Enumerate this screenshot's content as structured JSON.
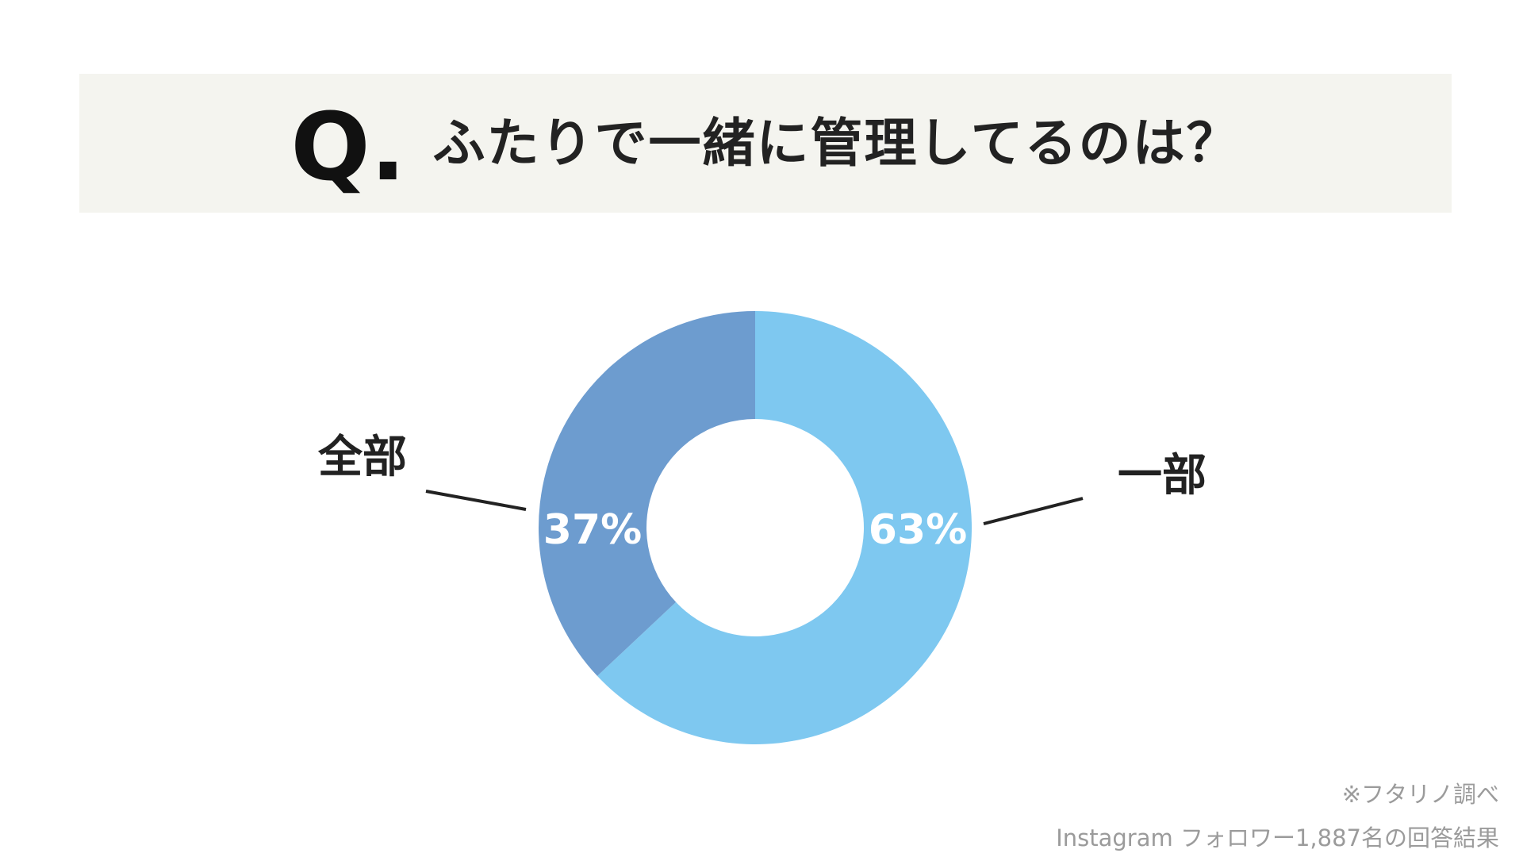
{
  "question": {
    "mark": "Q.",
    "text": "ふたりで一緒に管理してるのは？"
  },
  "chart_data": {
    "type": "pie",
    "donut": true,
    "categories": [
      "一部",
      "全部"
    ],
    "values": [
      63,
      37
    ],
    "value_labels": [
      "63%",
      "37%"
    ],
    "colors": [
      "#7ec8f0",
      "#6d9ccf"
    ],
    "label_color": "#222222",
    "value_label_color": "#ffffff",
    "start_angle_deg": 0,
    "direction": "clockwise"
  },
  "footnotes": {
    "source": "※フタリノ調べ",
    "sample": "Instagram フォロワー1,887名の回答結果"
  }
}
